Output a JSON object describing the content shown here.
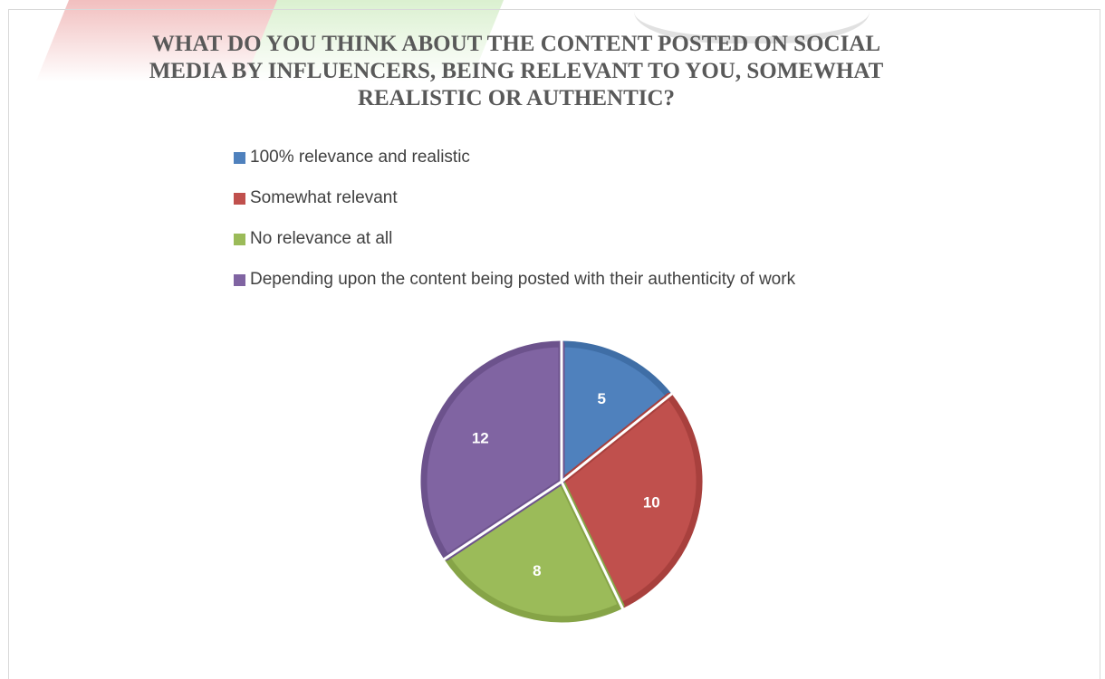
{
  "chart_data": {
    "type": "pie",
    "title": "WHAT DO YOU THINK ABOUT THE CONTENT POSTED ON SOCIAL MEDIA BY INFLUENCERS, BEING RELEVANT TO YOU, SOMEWHAT REALISTIC OR AUTHENTIC?",
    "legend_position": "top",
    "slices": [
      {
        "label": "100% relevance and realistic",
        "value": 5,
        "color": "#4f81bd",
        "edge": "#3f6ea6"
      },
      {
        "label": "Somewhat relevant",
        "value": 10,
        "color": "#c0504d",
        "edge": "#a8403d"
      },
      {
        "label": "No relevance at all",
        "value": 8,
        "color": "#9bbb59",
        "edge": "#86a447"
      },
      {
        "label": "Depending upon the content being posted with their authenticity of work",
        "value": 12,
        "color": "#8064a2",
        "edge": "#6c528c"
      }
    ]
  }
}
